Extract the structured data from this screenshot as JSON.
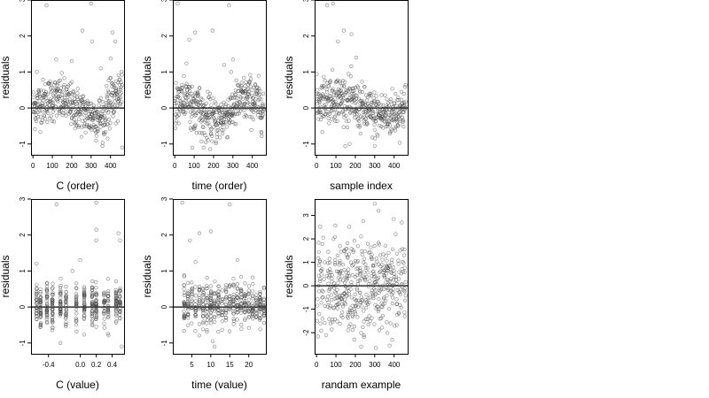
{
  "chart_data": [
    {
      "type": "scatter",
      "title": "",
      "xlabel": "C (order)",
      "ylabel": "residuals",
      "xlim": [
        -10,
        470
      ],
      "ylim": [
        -1.3,
        3.0
      ],
      "xticks": [
        "0",
        "100",
        "200",
        "300",
        "400"
      ],
      "yticks": [
        "-1",
        "0",
        "1",
        "2",
        "3"
      ],
      "reference_line_y": 0,
      "point_count": 450,
      "n": 450,
      "pattern": "order",
      "spread": 0.38,
      "outliers": [
        [
          70,
          2.85
        ],
        [
          120,
          1.35
        ],
        [
          200,
          1.3
        ],
        [
          255,
          2.15
        ],
        [
          300,
          2.9
        ],
        [
          305,
          1.85
        ],
        [
          410,
          2.1
        ],
        [
          425,
          1.85
        ],
        [
          460,
          -1.1
        ],
        [
          20,
          1.0
        ],
        [
          350,
          1.1
        ],
        [
          385,
          -0.85
        ]
      ]
    },
    {
      "type": "scatter",
      "title": "",
      "xlabel": "time (order)",
      "ylabel": "residuals",
      "xlim": [
        -10,
        470
      ],
      "ylim": [
        -1.3,
        3.0
      ],
      "xticks": [
        "0",
        "100",
        "200",
        "300",
        "400"
      ],
      "yticks": [
        "-1",
        "0",
        "1",
        "2",
        "3"
      ],
      "reference_line_y": 0,
      "point_count": 450,
      "n": 450,
      "pattern": "time",
      "spread": 0.4,
      "outliers": [
        [
          15,
          2.9
        ],
        [
          75,
          1.9
        ],
        [
          105,
          2.1
        ],
        [
          195,
          2.15
        ],
        [
          280,
          2.85
        ],
        [
          90,
          -1.1
        ],
        [
          160,
          -0.95
        ],
        [
          300,
          1.35
        ],
        [
          255,
          1.2
        ]
      ]
    },
    {
      "type": "scatter",
      "title": "",
      "xlabel": "sample index",
      "ylabel": "residuals",
      "xlim": [
        -10,
        470
      ],
      "ylim": [
        -1.3,
        3.0
      ],
      "xticks": [
        "0",
        "100",
        "200",
        "300",
        "400"
      ],
      "yticks": [
        "-1",
        "0",
        "1",
        "2",
        "3"
      ],
      "reference_line_y": 0,
      "point_count": 450,
      "n": 450,
      "pattern": "index",
      "spread": 0.4,
      "outliers": [
        [
          55,
          2.85
        ],
        [
          85,
          2.9
        ],
        [
          110,
          1.85
        ],
        [
          140,
          2.15
        ],
        [
          180,
          2.05
        ],
        [
          205,
          1.4
        ],
        [
          300,
          -1.05
        ],
        [
          170,
          -1.0
        ]
      ]
    },
    {
      "type": "scatter",
      "title": "",
      "xlabel": "C (value)",
      "ylabel": "residuals",
      "xlim": [
        -0.62,
        0.55
      ],
      "ylim": [
        -1.3,
        3.0
      ],
      "xticks": [
        "-0.4",
        "0.0",
        "0.2",
        "0.4"
      ],
      "xtick_values": [
        -0.4,
        0.0,
        0.2,
        0.4
      ],
      "yticks": [
        "-1",
        "0",
        "1",
        "2",
        "3"
      ],
      "reference_line_y": 0,
      "point_count": 450,
      "n": 450,
      "pattern": "discrete",
      "levels": [
        -0.55,
        -0.5,
        -0.42,
        -0.35,
        -0.25,
        -0.18,
        -0.05,
        0.05,
        0.15,
        0.2,
        0.3,
        0.35,
        0.45,
        0.5
      ],
      "outliers": [
        [
          -0.3,
          2.85
        ],
        [
          0.2,
          2.9
        ],
        [
          0.2,
          2.15
        ],
        [
          0.2,
          1.85
        ],
        [
          0.48,
          2.05
        ],
        [
          0.5,
          1.85
        ],
        [
          -0.55,
          1.2
        ],
        [
          0.0,
          1.3
        ],
        [
          0.52,
          -1.1
        ],
        [
          -0.1,
          1.0
        ]
      ]
    },
    {
      "type": "scatter",
      "title": "",
      "xlabel": "time (value)",
      "ylabel": "residuals",
      "xlim": [
        0,
        24.5
      ],
      "ylim": [
        -1.3,
        3.0
      ],
      "xticks": [
        "5",
        "10",
        "15",
        "20"
      ],
      "xtick_values": [
        5,
        10,
        15,
        20
      ],
      "yticks": [
        "-1",
        "0",
        "1",
        "2",
        "3"
      ],
      "reference_line_y": 0,
      "point_count": 450,
      "n": 450,
      "pattern": "discrete",
      "levels": [
        3,
        4,
        5,
        6,
        7,
        8,
        9,
        10,
        11,
        12,
        13,
        14,
        15,
        16,
        17,
        18,
        19,
        20,
        21,
        22,
        23,
        24
      ],
      "outliers": [
        [
          2.5,
          2.9
        ],
        [
          4.5,
          1.85
        ],
        [
          7,
          2.05
        ],
        [
          10,
          2.1
        ],
        [
          15,
          2.85
        ],
        [
          6,
          1.25
        ],
        [
          17,
          1.3
        ],
        [
          10.5,
          -0.95
        ],
        [
          11,
          -1.1
        ]
      ]
    },
    {
      "type": "scatter",
      "title": "",
      "xlabel": "randam example",
      "ylabel": "residuals",
      "xlim": [
        -10,
        470
      ],
      "ylim": [
        -2.9,
        3.7
      ],
      "xticks": [
        "0",
        "100",
        "200",
        "300",
        "400"
      ],
      "yticks": [
        "-2",
        "-1",
        "0",
        "1",
        "2",
        "3"
      ],
      "reference_line_y": 0,
      "point_count": 450,
      "n": 450,
      "pattern": "random",
      "spread": 1.0,
      "outliers": [
        [
          300,
          3.5
        ],
        [
          320,
          3.2
        ],
        [
          440,
          2.7
        ],
        [
          230,
          -2.6
        ],
        [
          50,
          -2.1
        ],
        [
          390,
          -2.3
        ]
      ]
    }
  ]
}
